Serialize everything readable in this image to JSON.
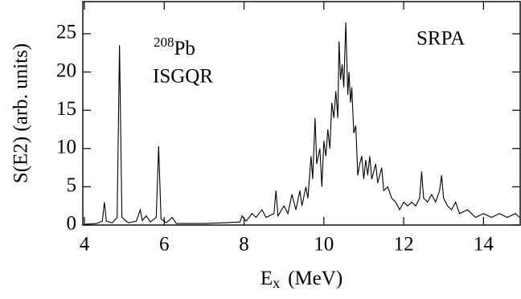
{
  "chart_data": {
    "type": "line",
    "x_label": {
      "main": "E",
      "sub": "x",
      "unit": "(MeV)"
    },
    "y_label": "S(E2) (arb. units)",
    "annotations": {
      "nucleus_mass": "208",
      "nucleus_symbol": "Pb",
      "resonance": "ISGQR",
      "method": "SRPA"
    },
    "color": "#000000",
    "xlim": [
      3.96,
      14.92
    ],
    "xticks": [
      4,
      6,
      8,
      10,
      12,
      14
    ],
    "ylim": [
      0,
      29.2
    ],
    "yticks": [
      0,
      5,
      10,
      15,
      20,
      25
    ],
    "x": [
      4.0,
      4.3,
      4.45,
      4.5,
      4.55,
      4.7,
      4.82,
      4.88,
      4.94,
      5.1,
      5.3,
      5.4,
      5.45,
      5.55,
      5.65,
      5.8,
      5.86,
      5.92,
      6.05,
      6.2,
      6.3,
      6.6,
      7.0,
      7.5,
      7.9,
      7.95,
      8.05,
      8.2,
      8.3,
      8.45,
      8.55,
      8.75,
      8.8,
      8.85,
      9.0,
      9.1,
      9.2,
      9.3,
      9.4,
      9.45,
      9.55,
      9.6,
      9.68,
      9.72,
      9.78,
      9.82,
      9.9,
      9.95,
      10.0,
      10.05,
      10.1,
      10.15,
      10.2,
      10.25,
      10.3,
      10.35,
      10.38,
      10.42,
      10.46,
      10.5,
      10.55,
      10.6,
      10.63,
      10.67,
      10.7,
      10.75,
      10.8,
      10.85,
      10.9,
      10.95,
      11.0,
      11.05,
      11.1,
      11.15,
      11.2,
      11.3,
      11.35,
      11.45,
      11.5,
      11.6,
      11.7,
      11.8,
      11.9,
      12.0,
      12.1,
      12.2,
      12.3,
      12.4,
      12.45,
      12.5,
      12.6,
      12.7,
      12.8,
      12.9,
      12.95,
      13.0,
      13.1,
      13.2,
      13.3,
      13.4,
      13.6,
      13.8,
      14.0,
      14.2,
      14.4,
      14.6,
      14.8,
      14.9
    ],
    "y": [
      0.1,
      0.2,
      0.5,
      3.0,
      0.5,
      0.3,
      1.0,
      23.5,
      1.0,
      0.3,
      0.5,
      2.0,
      0.6,
      1.2,
      0.4,
      1.0,
      10.3,
      0.8,
      0.3,
      1.0,
      0.2,
      0.2,
      0.2,
      0.3,
      0.4,
      1.2,
      0.5,
      1.5,
      1.0,
      2.0,
      1.0,
      1.5,
      4.5,
      1.2,
      2.5,
      1.5,
      4.0,
      2.0,
      4.5,
      2.5,
      5.0,
      3.5,
      9.0,
      6.0,
      14.0,
      8.0,
      10.0,
      5.0,
      11.0,
      9.0,
      12.5,
      10.0,
      16.0,
      14.0,
      17.5,
      14.0,
      24.0,
      19.0,
      21.0,
      18.0,
      26.5,
      17.0,
      20.0,
      16.0,
      18.0,
      12.0,
      13.0,
      6.5,
      8.0,
      9.0,
      6.0,
      8.5,
      6.5,
      9.0,
      6.0,
      8.0,
      5.5,
      7.5,
      4.5,
      5.0,
      3.5,
      3.0,
      2.0,
      3.0,
      2.5,
      3.0,
      2.5,
      3.5,
      7.0,
      3.5,
      3.0,
      4.0,
      3.0,
      4.5,
      6.5,
      3.5,
      2.5,
      2.0,
      3.0,
      1.5,
      2.0,
      1.0,
      1.5,
      1.0,
      1.5,
      1.0,
      1.5,
      1.0
    ]
  }
}
